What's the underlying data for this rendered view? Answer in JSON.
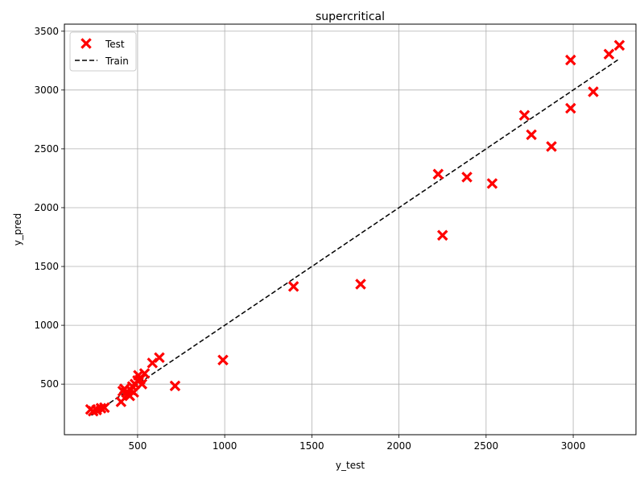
{
  "chart_data": {
    "type": "scatter",
    "title": "supercritical",
    "xlabel": "y_test",
    "ylabel": "y_pred",
    "xlim": [
      80,
      3360
    ],
    "ylim": [
      70,
      3560
    ],
    "xticks": [
      500,
      1000,
      1500,
      2000,
      2500,
      3000
    ],
    "yticks": [
      500,
      1000,
      1500,
      2000,
      2500,
      3000,
      3500
    ],
    "grid": true,
    "legend": {
      "placement": "top-left",
      "entries": [
        "Test",
        "Train"
      ]
    },
    "series": [
      {
        "name": "Test",
        "marker": "x",
        "color": "#ff0000",
        "points": [
          [
            230,
            285
          ],
          [
            245,
            270
          ],
          [
            265,
            280
          ],
          [
            290,
            295
          ],
          [
            310,
            300
          ],
          [
            405,
            350
          ],
          [
            415,
            440
          ],
          [
            425,
            460
          ],
          [
            435,
            430
          ],
          [
            445,
            415
          ],
          [
            455,
            400
          ],
          [
            460,
            450
          ],
          [
            470,
            480
          ],
          [
            478,
            430
          ],
          [
            485,
            500
          ],
          [
            500,
            530
          ],
          [
            505,
            575
          ],
          [
            515,
            540
          ],
          [
            525,
            500
          ],
          [
            540,
            590
          ],
          [
            585,
            680
          ],
          [
            625,
            725
          ],
          [
            715,
            485
          ],
          [
            990,
            705
          ],
          [
            1395,
            1330
          ],
          [
            1780,
            1350
          ],
          [
            2225,
            2285
          ],
          [
            2250,
            1765
          ],
          [
            2390,
            2260
          ],
          [
            2535,
            2205
          ],
          [
            2720,
            2785
          ],
          [
            2760,
            2620
          ],
          [
            2875,
            2520
          ],
          [
            2985,
            3255
          ],
          [
            2985,
            2845
          ],
          [
            3115,
            2985
          ],
          [
            3205,
            3305
          ],
          [
            3265,
            3380
          ]
        ]
      },
      {
        "name": "Train",
        "style": "dashed",
        "color": "#000000",
        "x": [
          235,
          3265
        ],
        "y": [
          235,
          3265
        ]
      }
    ]
  }
}
